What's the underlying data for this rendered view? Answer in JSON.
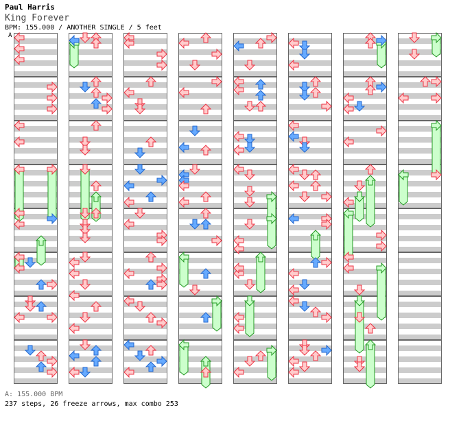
{
  "header": {
    "artist": "Paul Harris",
    "title": "King Forever",
    "info": "BPM: 155.000 / ANOTHER SINGLE / 5 feet",
    "marker": "A"
  },
  "footer": {
    "bpm": "A: 155.000 BPM",
    "stats": "237 steps, 26 freeze arrows, max combo 253"
  },
  "colors": {
    "band": "#cccccc",
    "border": "#666666",
    "red_fill": "#ffcccc",
    "red_stroke": "#ee3344",
    "blue_fill": "#66aaff",
    "blue_stroke": "#2266cc",
    "freeze_fill": "#ccffcc",
    "freeze_stroke": "#229922"
  },
  "chart": {
    "columns": 8,
    "measures_per_column": 8,
    "lanes": [
      "left",
      "down",
      "up",
      "right"
    ],
    "notes": [
      [
        0,
        0,
        0,
        0,
        "red"
      ],
      [
        0,
        0,
        4,
        0,
        "red"
      ],
      [
        0,
        0,
        8,
        0,
        "red"
      ],
      [
        1,
        0,
        0,
        1,
        "red"
      ],
      [
        1,
        0,
        0,
        2,
        "red"
      ],
      [
        1,
        0,
        1,
        0,
        "blue"
      ],
      [
        1,
        0,
        2,
        2,
        "red"
      ],
      [
        2,
        0,
        0,
        0,
        "red"
      ],
      [
        2,
        0,
        2,
        0,
        "red"
      ],
      [
        2,
        0,
        6,
        3,
        "red"
      ],
      [
        2,
        0,
        10,
        3,
        "red"
      ],
      [
        3,
        0,
        0,
        2,
        "red"
      ],
      [
        3,
        0,
        2,
        0,
        "red"
      ],
      [
        3,
        0,
        6,
        3,
        "red"
      ],
      [
        3,
        0,
        10,
        1,
        "red"
      ],
      [
        4,
        0,
        0,
        3,
        "red"
      ],
      [
        4,
        0,
        2,
        2,
        "red"
      ],
      [
        4,
        0,
        3,
        0,
        "blue"
      ],
      [
        4,
        0,
        10,
        1,
        "red"
      ],
      [
        5,
        0,
        2,
        0,
        "red"
      ],
      [
        5,
        0,
        3,
        1,
        "blue"
      ],
      [
        5,
        0,
        6,
        1,
        "blue"
      ],
      [
        5,
        0,
        10,
        0,
        "red"
      ],
      [
        6,
        0,
        0,
        2,
        "red"
      ],
      [
        6,
        0,
        1,
        3,
        "blue"
      ],
      [
        6,
        0,
        2,
        2,
        "red"
      ],
      [
        7,
        0,
        0,
        1,
        "red"
      ],
      [
        7,
        0,
        6,
        1,
        "red"
      ],
      [
        0,
        1,
        2,
        3,
        "red"
      ],
      [
        0,
        1,
        6,
        3,
        "red"
      ],
      [
        0,
        1,
        10,
        3,
        "red"
      ],
      [
        1,
        1,
        0,
        2,
        "red"
      ],
      [
        1,
        1,
        2,
        1,
        "blue"
      ],
      [
        1,
        1,
        4,
        2,
        "red"
      ],
      [
        1,
        1,
        6,
        3,
        "red"
      ],
      [
        1,
        1,
        8,
        2,
        "blue"
      ],
      [
        1,
        1,
        10,
        3,
        "red"
      ],
      [
        2,
        1,
        0,
        2,
        "red"
      ],
      [
        2,
        1,
        4,
        0,
        "red"
      ],
      [
        2,
        1,
        8,
        1,
        "red"
      ],
      [
        2,
        1,
        10,
        1,
        "red"
      ],
      [
        3,
        1,
        0,
        3,
        "red"
      ],
      [
        3,
        1,
        4,
        0,
        "red"
      ],
      [
        3,
        1,
        10,
        2,
        "red"
      ],
      [
        4,
        1,
        0,
        0,
        "red"
      ],
      [
        4,
        1,
        1,
        2,
        "blue"
      ],
      [
        4,
        1,
        3,
        0,
        "red"
      ],
      [
        4,
        1,
        5,
        2,
        "blue"
      ],
      [
        4,
        1,
        9,
        1,
        "red"
      ],
      [
        4,
        1,
        9,
        2,
        "red"
      ],
      [
        5,
        1,
        0,
        2,
        "red"
      ],
      [
        5,
        1,
        2,
        1,
        "blue"
      ],
      [
        5,
        1,
        4,
        2,
        "red"
      ],
      [
        5,
        1,
        5,
        1,
        "blue"
      ],
      [
        5,
        1,
        9,
        3,
        "red"
      ],
      [
        6,
        1,
        0,
        2,
        "red"
      ],
      [
        6,
        1,
        3,
        2,
        "red"
      ],
      [
        6,
        1,
        2,
        3,
        "blue"
      ],
      [
        6,
        1,
        6,
        0,
        "red"
      ],
      [
        6,
        1,
        9,
        1,
        "blue"
      ],
      [
        6,
        1,
        10,
        0,
        "red"
      ],
      [
        7,
        1,
        0,
        2,
        "red"
      ],
      [
        7,
        1,
        0,
        3,
        "red"
      ],
      [
        7,
        1,
        6,
        0,
        "red"
      ],
      [
        7,
        1,
        6,
        3,
        "red"
      ],
      [
        0,
        2,
        0,
        0,
        "red"
      ],
      [
        0,
        2,
        6,
        0,
        "red"
      ],
      [
        1,
        2,
        0,
        2,
        "red"
      ],
      [
        1,
        2,
        6,
        1,
        "red"
      ],
      [
        1,
        2,
        9,
        1,
        "red"
      ],
      [
        2,
        2,
        6,
        2,
        "red"
      ],
      [
        2,
        2,
        10,
        1,
        "blue"
      ],
      [
        3,
        2,
        2,
        1,
        "blue"
      ],
      [
        3,
        2,
        8,
        0,
        "blue"
      ],
      [
        3,
        2,
        9,
        2,
        "red"
      ],
      [
        4,
        2,
        4,
        0,
        "red"
      ],
      [
        4,
        2,
        5,
        1,
        "blue"
      ],
      [
        4,
        2,
        8,
        1,
        "blue"
      ],
      [
        4,
        2,
        9,
        0,
        "red"
      ],
      [
        5,
        2,
        0,
        0,
        "red"
      ],
      [
        5,
        2,
        4,
        0,
        "blue"
      ],
      [
        5,
        2,
        6,
        1,
        "red"
      ],
      [
        5,
        2,
        8,
        1,
        "blue"
      ],
      [
        6,
        2,
        2,
        3,
        "red"
      ],
      [
        6,
        2,
        6,
        0,
        "red"
      ],
      [
        0,
        3,
        0,
        0,
        "red"
      ],
      [
        0,
        3,
        0,
        3,
        "red"
      ],
      [
        1,
        3,
        0,
        1,
        "red"
      ],
      [
        1,
        3,
        6,
        2,
        "red"
      ],
      [
        2,
        3,
        0,
        1,
        "blue"
      ],
      [
        2,
        3,
        4,
        3,
        "blue"
      ],
      [
        2,
        3,
        6,
        0,
        "blue"
      ],
      [
        2,
        3,
        10,
        2,
        "blue"
      ],
      [
        2,
        3,
        12,
        0,
        "red"
      ],
      [
        3,
        3,
        0,
        1,
        "red"
      ],
      [
        3,
        3,
        2,
        0,
        "blue"
      ],
      [
        3,
        3,
        4,
        0,
        "blue"
      ],
      [
        3,
        3,
        6,
        0,
        "red"
      ],
      [
        3,
        3,
        10,
        2,
        "red"
      ],
      [
        3,
        3,
        12,
        0,
        "red"
      ],
      [
        4,
        3,
        0,
        0,
        "red"
      ],
      [
        4,
        3,
        2,
        1,
        "red"
      ],
      [
        4,
        3,
        8,
        1,
        "red"
      ],
      [
        4,
        3,
        12,
        1,
        "red"
      ],
      [
        5,
        3,
        0,
        0,
        "red"
      ],
      [
        5,
        3,
        2,
        1,
        "red"
      ],
      [
        5,
        3,
        2,
        2,
        "red"
      ],
      [
        5,
        3,
        6,
        0,
        "red"
      ],
      [
        5,
        3,
        6,
        2,
        "red"
      ],
      [
        5,
        3,
        10,
        1,
        "red"
      ],
      [
        5,
        3,
        10,
        3,
        "red"
      ],
      [
        6,
        3,
        0,
        2,
        "red"
      ],
      [
        6,
        3,
        6,
        1,
        "red"
      ],
      [
        6,
        3,
        12,
        0,
        "red"
      ],
      [
        7,
        3,
        2,
        3,
        "red"
      ],
      [
        0,
        4,
        0,
        0,
        "red"
      ],
      [
        0,
        4,
        4,
        0,
        "red"
      ],
      [
        0,
        4,
        2,
        3,
        "blue"
      ],
      [
        1,
        4,
        0,
        1,
        "red"
      ],
      [
        1,
        4,
        0,
        2,
        "red"
      ],
      [
        1,
        4,
        4,
        1,
        "red"
      ],
      [
        1,
        4,
        6,
        1,
        "red"
      ],
      [
        1,
        4,
        9,
        1,
        "red"
      ],
      [
        2,
        4,
        0,
        1,
        "red"
      ],
      [
        2,
        4,
        4,
        0,
        "red"
      ],
      [
        2,
        4,
        8,
        3,
        "red"
      ],
      [
        2,
        4,
        10,
        3,
        "red"
      ],
      [
        3,
        4,
        0,
        2,
        "red"
      ],
      [
        3,
        4,
        4,
        1,
        "blue"
      ],
      [
        3,
        4,
        4,
        2,
        "blue"
      ],
      [
        3,
        4,
        10,
        3,
        "red"
      ],
      [
        4,
        4,
        4,
        1,
        "red"
      ],
      [
        4,
        4,
        10,
        0,
        "red"
      ],
      [
        4,
        4,
        13,
        0,
        "red"
      ],
      [
        5,
        4,
        2,
        0,
        "blue"
      ],
      [
        5,
        4,
        2,
        3,
        "red"
      ],
      [
        5,
        4,
        4,
        3,
        "red"
      ],
      [
        6,
        4,
        8,
        3,
        "red"
      ],
      [
        6,
        4,
        12,
        3,
        "red"
      ],
      [
        0,
        5,
        0,
        0,
        "red"
      ],
      [
        0,
        5,
        2,
        1,
        "blue"
      ],
      [
        0,
        5,
        4,
        0,
        "red"
      ],
      [
        0,
        5,
        10,
        2,
        "blue"
      ],
      [
        0,
        5,
        10,
        3,
        "red"
      ],
      [
        1,
        5,
        0,
        1,
        "red"
      ],
      [
        1,
        5,
        2,
        0,
        "red"
      ],
      [
        1,
        5,
        6,
        0,
        "red"
      ],
      [
        1,
        5,
        10,
        1,
        "red"
      ],
      [
        1,
        5,
        14,
        0,
        "red"
      ],
      [
        2,
        5,
        0,
        2,
        "red"
      ],
      [
        2,
        5,
        4,
        3,
        "red"
      ],
      [
        2,
        5,
        8,
        3,
        "red"
      ],
      [
        2,
        5,
        6,
        0,
        "red"
      ],
      [
        2,
        5,
        10,
        2,
        "blue"
      ],
      [
        2,
        5,
        10,
        3,
        "red"
      ],
      [
        3,
        5,
        6,
        2,
        "blue"
      ],
      [
        3,
        5,
        12,
        1,
        "red"
      ],
      [
        4,
        5,
        6,
        0,
        "red"
      ],
      [
        4,
        5,
        4,
        0,
        "red"
      ],
      [
        4,
        5,
        10,
        1,
        "red"
      ],
      [
        5,
        5,
        2,
        3,
        "red"
      ],
      [
        5,
        5,
        2,
        2,
        "blue"
      ],
      [
        5,
        5,
        6,
        0,
        "red"
      ],
      [
        5,
        5,
        10,
        1,
        "blue"
      ],
      [
        5,
        5,
        12,
        0,
        "red"
      ],
      [
        6,
        5,
        0,
        0,
        "red"
      ],
      [
        6,
        5,
        4,
        0,
        "red"
      ],
      [
        6,
        5,
        12,
        1,
        "red"
      ],
      [
        0,
        6,
        0,
        1,
        "red"
      ],
      [
        0,
        6,
        2,
        1,
        "red"
      ],
      [
        0,
        6,
        2,
        2,
        "blue"
      ],
      [
        0,
        6,
        6,
        0,
        "red"
      ],
      [
        0,
        6,
        6,
        3,
        "red"
      ],
      [
        1,
        6,
        2,
        2,
        "red"
      ],
      [
        1,
        6,
        6,
        1,
        "red"
      ],
      [
        1,
        6,
        10,
        0,
        "red"
      ],
      [
        2,
        6,
        0,
        0,
        "red"
      ],
      [
        2,
        6,
        2,
        1,
        "red"
      ],
      [
        2,
        6,
        6,
        2,
        "red"
      ],
      [
        2,
        6,
        8,
        3,
        "red"
      ],
      [
        3,
        6,
        6,
        2,
        "blue"
      ],
      [
        4,
        6,
        6,
        0,
        "red"
      ],
      [
        4,
        6,
        10,
        0,
        "red"
      ],
      [
        5,
        6,
        0,
        0,
        "red"
      ],
      [
        5,
        6,
        2,
        1,
        "blue"
      ],
      [
        5,
        6,
        4,
        2,
        "red"
      ],
      [
        5,
        6,
        6,
        3,
        "red"
      ],
      [
        6,
        6,
        6,
        1,
        "red"
      ],
      [
        6,
        6,
        10,
        2,
        "red"
      ],
      [
        0,
        7,
        2,
        1,
        "blue"
      ],
      [
        0,
        7,
        4,
        2,
        "red"
      ],
      [
        0,
        7,
        6,
        3,
        "red"
      ],
      [
        0,
        7,
        8,
        2,
        "blue"
      ],
      [
        0,
        7,
        10,
        3,
        "red"
      ],
      [
        1,
        7,
        0,
        1,
        "red"
      ],
      [
        1,
        7,
        2,
        2,
        "blue"
      ],
      [
        1,
        7,
        4,
        0,
        "blue"
      ],
      [
        1,
        7,
        6,
        2,
        "blue"
      ],
      [
        1,
        7,
        10,
        0,
        "red"
      ],
      [
        1,
        7,
        10,
        1,
        "blue"
      ],
      [
        2,
        7,
        0,
        0,
        "blue"
      ],
      [
        2,
        7,
        2,
        2,
        "red"
      ],
      [
        2,
        7,
        4,
        1,
        "blue"
      ],
      [
        2,
        7,
        6,
        3,
        "blue"
      ],
      [
        2,
        7,
        8,
        2,
        "blue"
      ],
      [
        2,
        7,
        10,
        0,
        "red"
      ],
      [
        3,
        7,
        10,
        2,
        "red"
      ],
      [
        4,
        7,
        4,
        2,
        "red"
      ],
      [
        4,
        7,
        6,
        1,
        "red"
      ],
      [
        4,
        7,
        10,
        0,
        "red"
      ],
      [
        5,
        7,
        0,
        1,
        "red"
      ],
      [
        5,
        7,
        2,
        1,
        "red"
      ],
      [
        5,
        7,
        2,
        3,
        "blue"
      ],
      [
        5,
        7,
        4,
        2,
        "red"
      ],
      [
        5,
        7,
        6,
        0,
        "red"
      ],
      [
        5,
        7,
        8,
        1,
        "red"
      ],
      [
        5,
        7,
        10,
        0,
        "red"
      ],
      [
        6,
        7,
        6,
        1,
        "red"
      ],
      [
        6,
        7,
        8,
        1,
        "red"
      ]
    ],
    "freezes": [
      [
        0,
        3,
        0,
        0,
        14
      ],
      [
        0,
        3,
        0,
        3,
        14
      ],
      [
        1,
        3,
        0,
        1,
        14
      ],
      [
        1,
        3,
        10,
        2,
        4
      ],
      [
        0,
        4,
        10,
        2,
        4
      ],
      [
        0,
        5,
        0,
        0,
        0
      ],
      [
        1,
        0,
        2,
        0,
        4
      ],
      [
        6,
        0,
        2,
        3,
        4
      ],
      [
        7,
        0,
        0,
        3,
        2
      ],
      [
        7,
        2,
        0,
        3,
        14
      ],
      [
        7,
        3,
        2,
        0,
        6
      ],
      [
        4,
        3,
        10,
        3,
        4
      ],
      [
        4,
        4,
        2,
        3,
        6
      ],
      [
        5,
        4,
        8,
        2,
        4
      ],
      [
        6,
        4,
        0,
        0,
        12
      ],
      [
        6,
        3,
        10,
        1,
        4
      ],
      [
        6,
        3,
        4,
        2,
        12
      ],
      [
        3,
        5,
        0,
        0,
        6
      ],
      [
        4,
        5,
        0,
        2,
        8
      ],
      [
        6,
        5,
        4,
        3,
        14
      ],
      [
        3,
        6,
        0,
        3,
        6
      ],
      [
        4,
        6,
        0,
        1,
        8
      ],
      [
        6,
        6,
        0,
        1,
        14
      ],
      [
        3,
        7,
        0,
        0,
        6
      ],
      [
        3,
        7,
        6,
        2,
        6
      ],
      [
        4,
        7,
        2,
        3,
        6
      ],
      [
        6,
        7,
        0,
        2,
        14
      ]
    ]
  }
}
